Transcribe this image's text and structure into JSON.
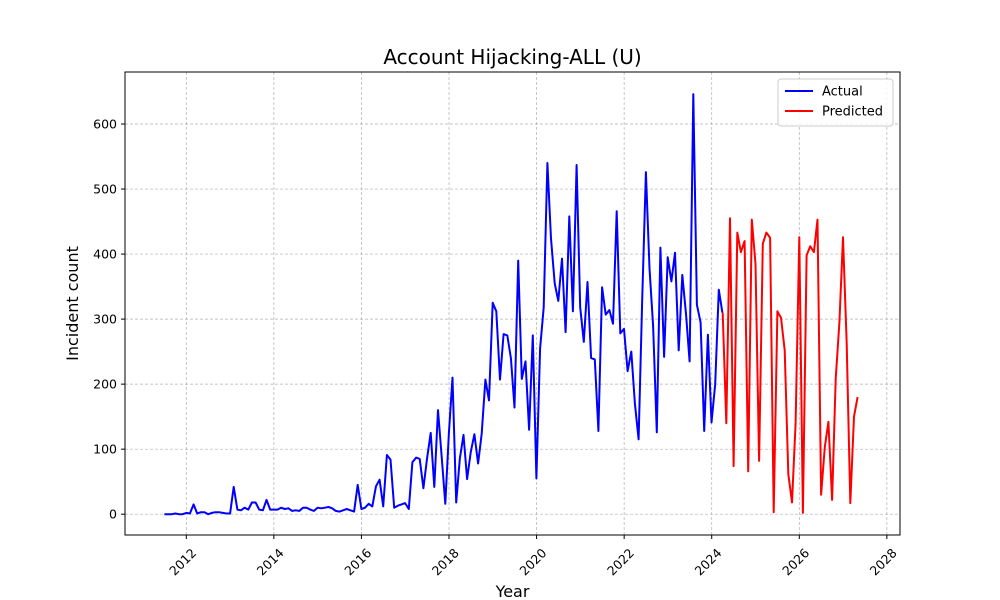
{
  "chart_data": {
    "type": "line",
    "title": "Account Hijacking-ALL (U)",
    "xlabel": "Year",
    "ylabel": "Incident count",
    "xlim": [
      2010.6,
      2028.3
    ],
    "ylim": [
      -32,
      680
    ],
    "xticks": [
      2012,
      2014,
      2016,
      2018,
      2020,
      2022,
      2024,
      2026,
      2028
    ],
    "yticks": [
      0,
      100,
      200,
      300,
      400,
      500,
      600
    ],
    "grid": true,
    "legend_position": "top-right",
    "colors": {
      "actual": "#0000ff",
      "predicted": "#ff0000"
    },
    "series": [
      {
        "name": "Actual",
        "start": 2011.5,
        "step": 0.0833,
        "values": [
          0,
          0,
          0,
          1,
          0,
          0,
          2,
          1,
          15,
          1,
          3,
          3,
          0,
          2,
          3,
          3,
          2,
          1,
          1,
          42,
          7,
          6,
          10,
          7,
          18,
          18,
          7,
          6,
          22,
          7,
          7,
          7,
          10,
          8,
          9,
          5,
          6,
          5,
          10,
          10,
          7,
          5,
          10,
          9,
          10,
          11,
          9,
          5,
          4,
          6,
          8,
          6,
          4,
          45,
          8,
          10,
          16,
          12,
          43,
          53,
          12,
          91,
          84,
          10,
          13,
          15,
          17,
          8,
          80,
          87,
          85,
          40,
          85,
          125,
          42,
          160,
          90,
          16,
          125,
          210,
          18,
          85,
          122,
          54,
          96,
          123,
          78,
          124,
          207,
          175,
          325,
          312,
          207,
          277,
          275,
          240,
          164,
          390,
          208,
          235,
          130,
          275,
          55,
          255,
          318,
          540,
          424,
          355,
          328,
          393,
          280,
          458,
          312,
          537,
          318,
          265,
          357,
          240,
          238,
          128,
          349,
          307,
          314,
          293,
          466,
          278,
          285,
          220,
          250,
          170,
          115,
          330,
          526,
          378,
          290,
          126,
          410,
          242,
          395,
          358,
          402,
          252,
          368,
          308,
          235,
          646,
          322,
          295,
          128,
          276,
          141,
          200,
          345,
          310
        ]
      },
      {
        "name": "Predicted",
        "start": 2024.25,
        "step": 0.0833,
        "values": [
          310,
          140,
          455,
          74,
          433,
          403,
          420,
          66,
          453,
          385,
          82,
          416,
          433,
          425,
          3,
          312,
          302,
          252,
          62,
          18,
          140,
          426,
          2,
          398,
          412,
          403,
          453,
          30,
          103,
          142,
          22,
          208,
          295,
          426,
          262,
          17,
          150,
          180
        ]
      }
    ]
  }
}
